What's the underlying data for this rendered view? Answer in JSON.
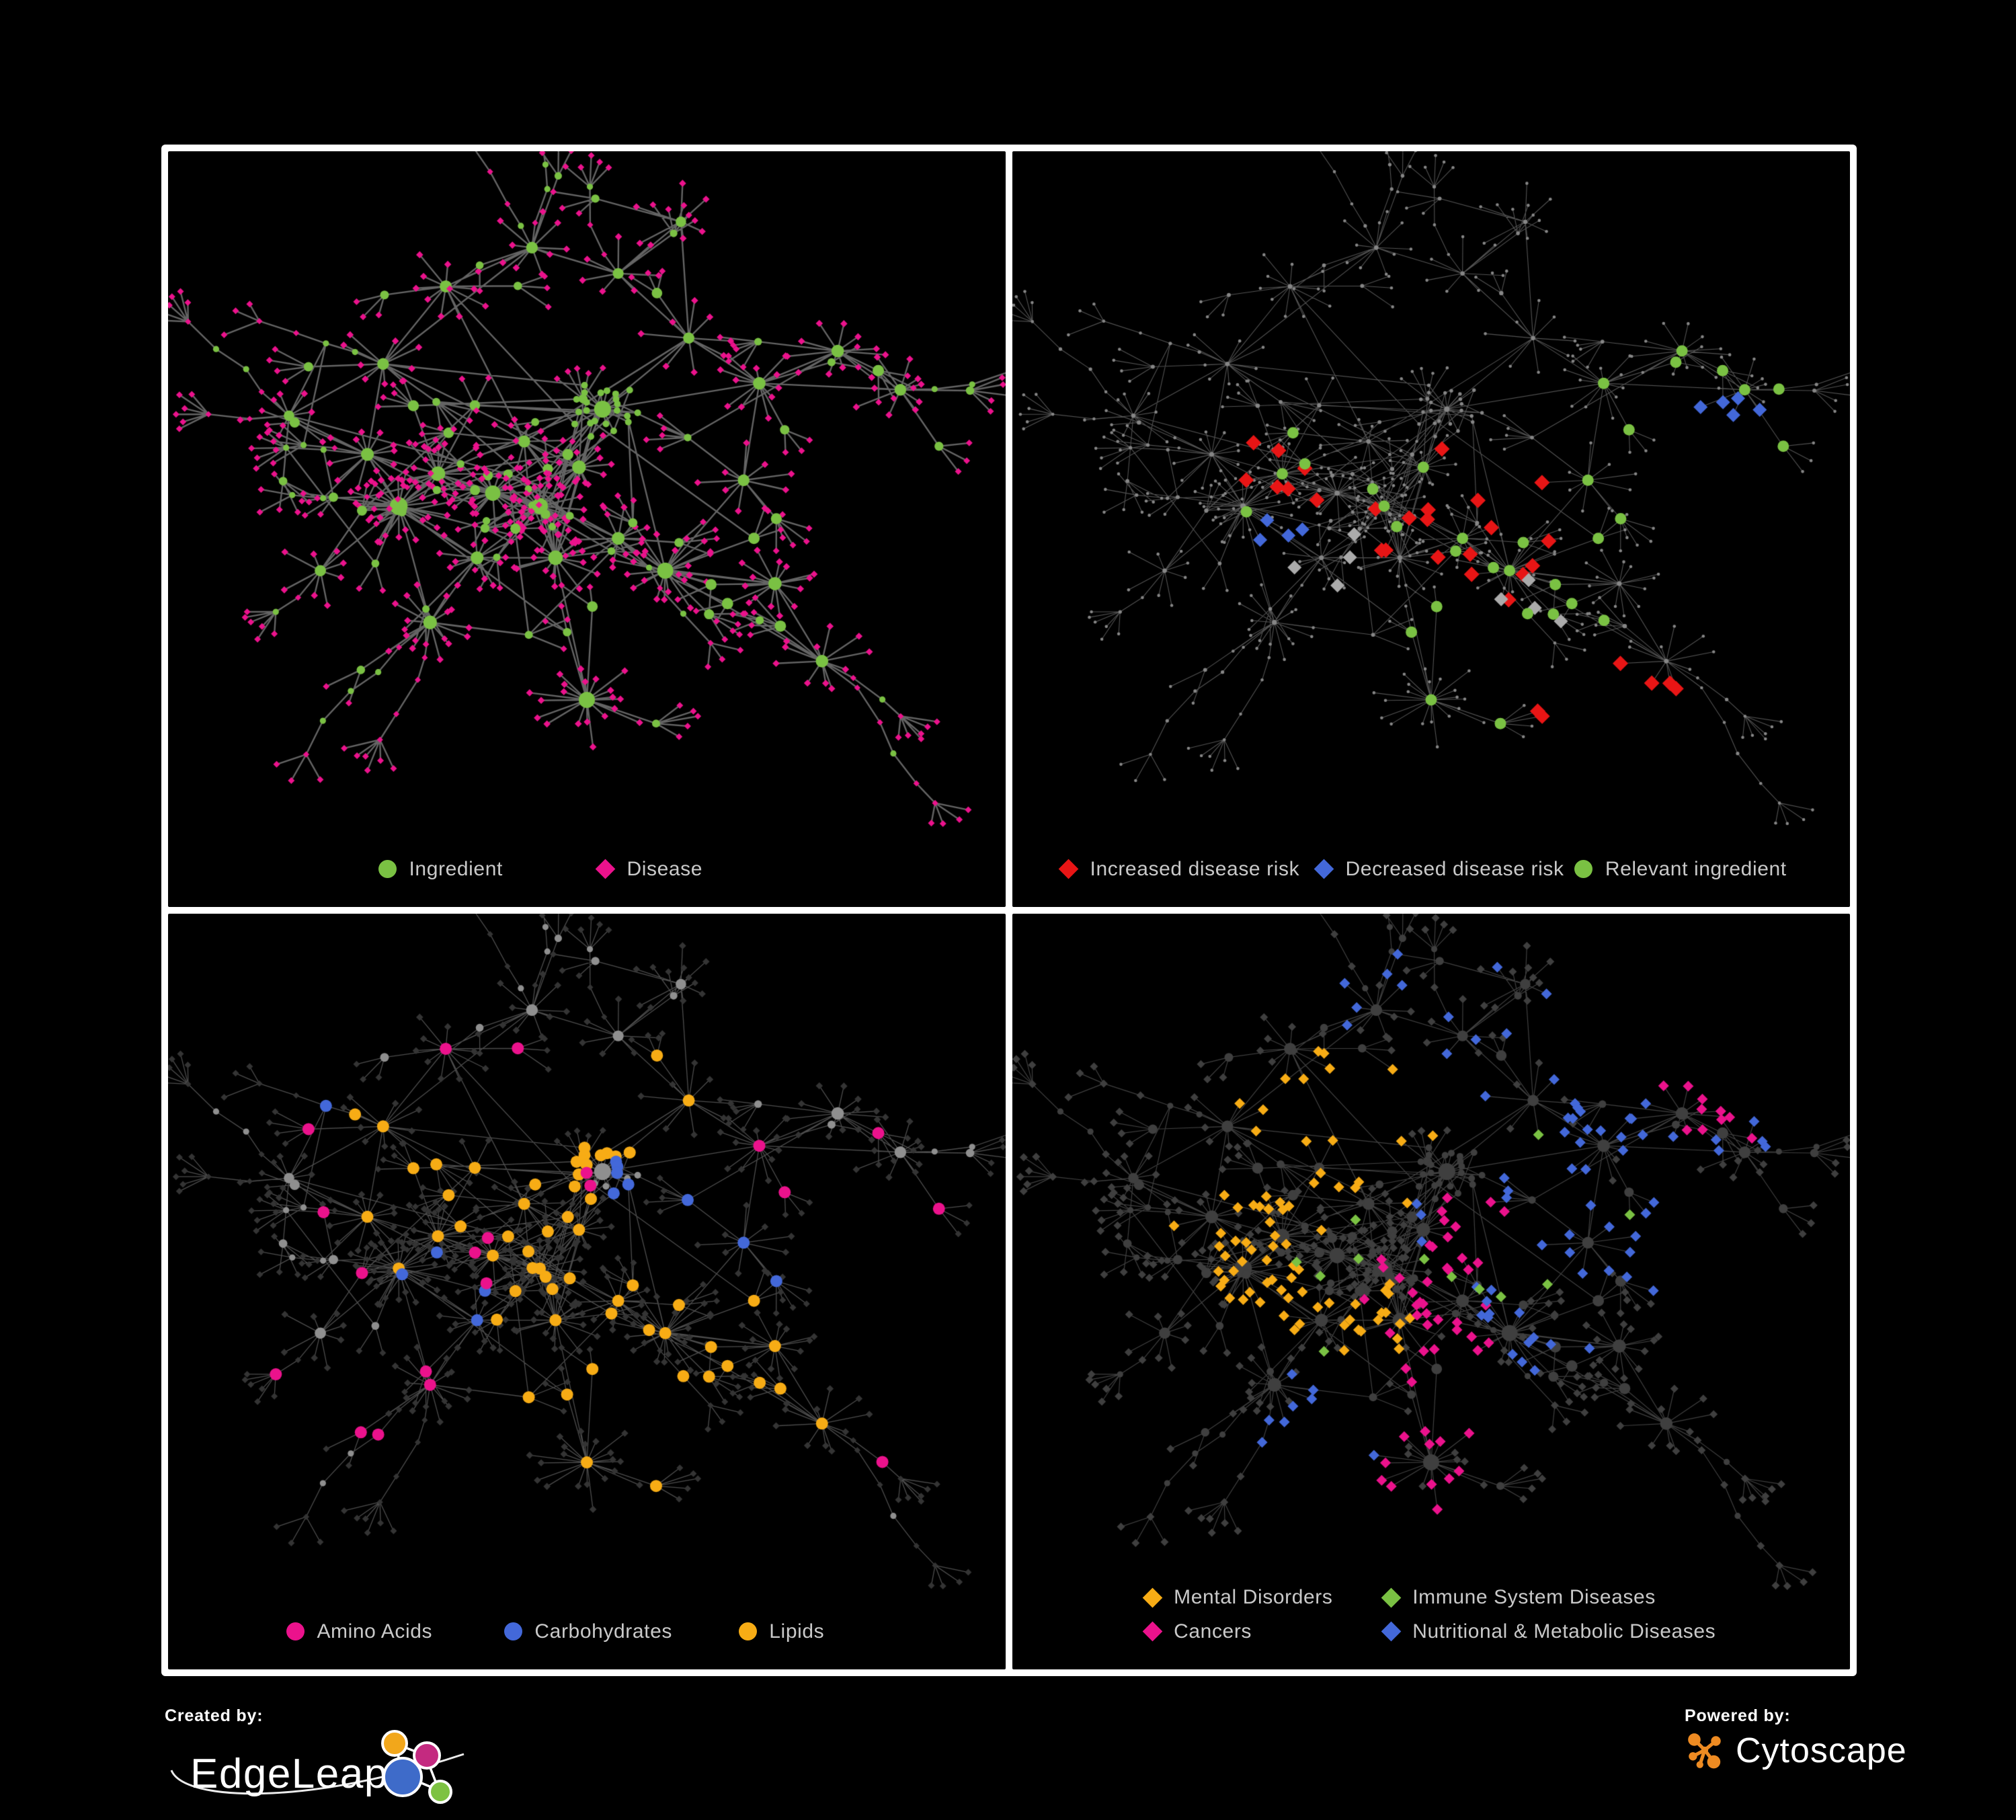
{
  "branding": {
    "created_by_label": "Created by:",
    "created_by_name": "EdgeLeap",
    "powered_by_label": "Powered by:",
    "powered_by_name": "Cytoscape"
  },
  "palette": {
    "green": "#7AC143",
    "pink": "#EB128C",
    "red": "#E81515",
    "blue": "#4368D9",
    "orange": "#F7AC15",
    "gray_highlight": "#ABABAB",
    "legend_text": "#C9C9C9",
    "frame": "#FFFFFF",
    "background": "#000000"
  },
  "chart_data": {
    "type": "network",
    "description": "Four node-link network views of the same ingredient-disease association network rendered with Cytoscape. Circles are ingredients, diamonds are diseases. Panel 1 colors nodes by type; panel 2 shows the plain gray network with highlighted risk associations; panel 3 highlights ingredient chemical classes; panel 4 highlights disease categories as spatial clusters.",
    "grid": {
      "rows": 2,
      "cols": 2
    },
    "layout": {
      "seed": 11,
      "tendrils": 16,
      "cross_links": 48,
      "hubs": [
        {
          "x": 0.26,
          "y": 0.52,
          "n": 24,
          "spread": 0.05
        },
        {
          "x": 0.31,
          "y": 0.47,
          "n": 16
        },
        {
          "x": 0.22,
          "y": 0.44,
          "n": 12
        },
        {
          "x": 0.38,
          "y": 0.5,
          "n": 18
        },
        {
          "x": 0.44,
          "y": 0.52,
          "n": 20
        },
        {
          "x": 0.49,
          "y": 0.46,
          "n": 14
        },
        {
          "x": 0.42,
          "y": 0.42,
          "n": 10
        },
        {
          "x": 0.52,
          "y": 0.37,
          "n": 22,
          "leaf": "circle",
          "spread": 0.034,
          "mids": 2
        },
        {
          "x": 0.46,
          "y": 0.6,
          "n": 16
        },
        {
          "x": 0.54,
          "y": 0.57,
          "n": 12
        },
        {
          "x": 0.6,
          "y": 0.62,
          "n": 20,
          "spread": 0.05
        },
        {
          "x": 0.36,
          "y": 0.6,
          "n": 12
        },
        {
          "x": 0.5,
          "y": 0.82,
          "n": 20,
          "spread": 0.055
        },
        {
          "x": 0.3,
          "y": 0.7,
          "n": 14,
          "spread": 0.05
        },
        {
          "x": 0.24,
          "y": 0.3,
          "n": 9
        },
        {
          "x": 0.32,
          "y": 0.18,
          "n": 10
        },
        {
          "x": 0.43,
          "y": 0.12,
          "n": 9
        },
        {
          "x": 0.54,
          "y": 0.16,
          "n": 7
        },
        {
          "x": 0.63,
          "y": 0.26,
          "n": 8
        },
        {
          "x": 0.72,
          "y": 0.33,
          "n": 11
        },
        {
          "x": 0.82,
          "y": 0.28,
          "n": 11
        },
        {
          "x": 0.9,
          "y": 0.34,
          "n": 9
        },
        {
          "x": 0.7,
          "y": 0.48,
          "n": 9
        },
        {
          "x": 0.74,
          "y": 0.64,
          "n": 13
        },
        {
          "x": 0.8,
          "y": 0.76,
          "n": 11
        },
        {
          "x": 0.16,
          "y": 0.62,
          "n": 8
        },
        {
          "x": 0.12,
          "y": 0.38,
          "n": 6
        },
        {
          "x": 0.62,
          "y": 0.08,
          "n": 6
        }
      ]
    },
    "panels": [
      {
        "id": "ingredient-disease",
        "style": {
          "edge_color": "#6F6F6F",
          "edge_width": 2.4,
          "edge_alpha": 0.9,
          "circle_color": "#7AC143",
          "diamond_color": "#EB128C",
          "base_mode": "full"
        },
        "highlight_seed": 3,
        "highlights": [],
        "legend": {
          "text_color": "#C9C9C9",
          "items": [
            {
              "shape": "circle",
              "color": "#7AC143",
              "label": "Ingredient",
              "x": 25,
              "y": 95
            },
            {
              "shape": "diamond",
              "color": "#EB128C",
              "label": "Disease",
              "x": 51,
              "y": 95
            }
          ]
        }
      },
      {
        "id": "disease-risk",
        "style": {
          "edge_color": "#616161",
          "edge_width": 1.1,
          "edge_alpha": 0.85,
          "base_mode": "dots",
          "dot_color": "#868686"
        },
        "highlight_seed": 7,
        "highlights": [
          {
            "shape": "diamond",
            "color": "#E81515",
            "count": 30,
            "size": 11.5,
            "centers": [
              [
                0.43,
                0.5,
                0.06
              ],
              [
                0.5,
                0.58,
                0.05
              ],
              [
                0.33,
                0.47,
                0.045
              ],
              [
                0.57,
                0.63,
                0.05
              ],
              [
                0.7,
                0.8,
                0.05
              ],
              [
                0.62,
                0.5,
                0.04
              ]
            ]
          },
          {
            "shape": "diamond",
            "color": "#4368D9",
            "count": 9,
            "size": 10.5,
            "centers": [
              [
                0.29,
                0.52,
                0.035
              ],
              [
                0.865,
                0.385,
                0.012
              ],
              [
                0.3,
                0.56,
                0.03
              ]
            ]
          },
          {
            "shape": "diamond",
            "color": "#ABABAB",
            "count": 8,
            "size": 10.5,
            "centers": [
              [
                0.42,
                0.52,
                0.1
              ],
              [
                0.6,
                0.66,
                0.05
              ]
            ]
          },
          {
            "shape": "circle",
            "color": "#7AC143",
            "count": 33,
            "size": 8.5,
            "centers": [
              [
                0.44,
                0.5,
                0.07
              ],
              [
                0.29,
                0.5,
                0.05
              ],
              [
                0.52,
                0.57,
                0.05
              ],
              [
                0.63,
                0.65,
                0.035
              ],
              [
                0.6,
                0.85,
                0.04
              ],
              [
                0.3,
                0.42,
                0.05
              ],
              [
                0.83,
                0.42,
                0.02
              ]
            ]
          }
        ],
        "legend": {
          "text_color": "#C9C9C9",
          "items": [
            {
              "shape": "diamond",
              "color": "#E81515",
              "label": "Increased disease risk",
              "x": 5.5,
              "y": 95
            },
            {
              "shape": "diamond",
              "color": "#4368D9",
              "label": "Decreased disease risk",
              "x": 36,
              "y": 95
            },
            {
              "shape": "circle",
              "color": "#7AC143",
              "label": "Relevant ingredient",
              "x": 67,
              "y": 95
            }
          ]
        }
      },
      {
        "id": "ingredient-classes",
        "style": {
          "edge_color": "#9A9A9A",
          "edge_width": 1.3,
          "edge_alpha": 0.5,
          "circle_color": "#8F8F8F",
          "diamond_color": "#343434",
          "base_mode": "full"
        },
        "highlight_seed": 5,
        "highlights": [
          {
            "shape": "circle",
            "color": "#F7AC15",
            "count": 60,
            "size": 9,
            "centers": [
              [
                0.5,
                0.3,
                0.045
              ],
              [
                0.45,
                0.5,
                0.05
              ],
              [
                0.56,
                0.6,
                0.06
              ],
              [
                0.35,
                0.42,
                0.1
              ],
              [
                0.62,
                0.72,
                0.06
              ]
            ]
          },
          {
            "shape": "circle",
            "color": "#4368D9",
            "count": 13,
            "size": 9,
            "centers": [
              [
                0.5,
                0.28,
                0.035
              ],
              [
                0.33,
                0.4,
                0.09
              ],
              [
                0.58,
                0.62,
                0.05
              ]
            ]
          },
          {
            "shape": "circle",
            "color": "#EB128C",
            "count": 20,
            "size": 9,
            "centers": [
              [
                0.2,
                0.48,
                0.13
              ],
              [
                0.52,
                0.78,
                0.1
              ],
              [
                0.78,
                0.42,
                0.14
              ],
              [
                0.4,
                0.25,
                0.1
              ]
            ]
          }
        ],
        "legend": {
          "text_color": "#C9C9C9",
          "items": [
            {
              "shape": "circle",
              "color": "#EB128C",
              "label": "Amino Acids",
              "x": 14,
              "y": 95
            },
            {
              "shape": "circle",
              "color": "#4368D9",
              "label": "Carbohydrates",
              "x": 40,
              "y": 95
            },
            {
              "shape": "circle",
              "color": "#F7AC15",
              "label": "Lipids",
              "x": 68,
              "y": 95
            }
          ]
        }
      },
      {
        "id": "disease-classes",
        "style": {
          "edge_color": "#9F9F9F",
          "edge_width": 1.2,
          "edge_alpha": 0.4,
          "circle_color": "#3F3F3F",
          "diamond_color": "#3F3F3F",
          "base_mode": "full",
          "diamond_r": 6
        },
        "highlight_seed": 9,
        "highlights": [
          {
            "shape": "diamond",
            "color": "#F7AC15",
            "count": 80,
            "size": 8,
            "centers": [
              [
                0.25,
                0.5,
                0.045
              ],
              [
                0.3,
                0.57,
                0.04
              ],
              [
                0.28,
                0.44,
                0.045
              ],
              [
                0.36,
                0.3,
                0.1
              ],
              [
                0.42,
                0.6,
                0.05
              ]
            ]
          },
          {
            "shape": "diamond",
            "color": "#EB128C",
            "count": 60,
            "size": 8,
            "centers": [
              [
                0.46,
                0.56,
                0.05
              ],
              [
                0.52,
                0.63,
                0.045
              ],
              [
                0.86,
                0.28,
                0.035
              ],
              [
                0.5,
                0.83,
                0.06
              ],
              [
                0.55,
                0.48,
                0.04
              ]
            ]
          },
          {
            "shape": "diamond",
            "color": "#4368D9",
            "count": 78,
            "size": 8,
            "centers": [
              [
                0.57,
                0.57,
                0.04
              ],
              [
                0.62,
                0.44,
                0.05
              ],
              [
                0.55,
                0.14,
                0.07
              ],
              [
                0.72,
                0.3,
                0.06
              ],
              [
                0.42,
                0.1,
                0.07
              ],
              [
                0.78,
                0.5,
                0.05
              ],
              [
                0.36,
                0.76,
                0.07
              ],
              [
                0.84,
                0.16,
                0.04
              ],
              [
                0.64,
                0.66,
                0.035
              ]
            ]
          },
          {
            "shape": "diamond",
            "color": "#7AC143",
            "count": 12,
            "size": 8,
            "centers": [
              [
                0.5,
                0.55,
                0.16
              ]
            ]
          }
        ],
        "legend": {
          "text_color": "#C9C9C9",
          "items": [
            {
              "shape": "diamond",
              "color": "#F7AC15",
              "label": "Mental Disorders",
              "x": 15.5,
              "y": 90.5
            },
            {
              "shape": "diamond",
              "color": "#7AC143",
              "label": "Immune System Diseases",
              "x": 44,
              "y": 90.5
            },
            {
              "shape": "diamond",
              "color": "#EB128C",
              "label": "Cancers",
              "x": 15.5,
              "y": 95
            },
            {
              "shape": "diamond",
              "color": "#4368D9",
              "label": "Nutritional & Metabolic Diseases",
              "x": 44,
              "y": 95
            }
          ]
        }
      }
    ]
  }
}
